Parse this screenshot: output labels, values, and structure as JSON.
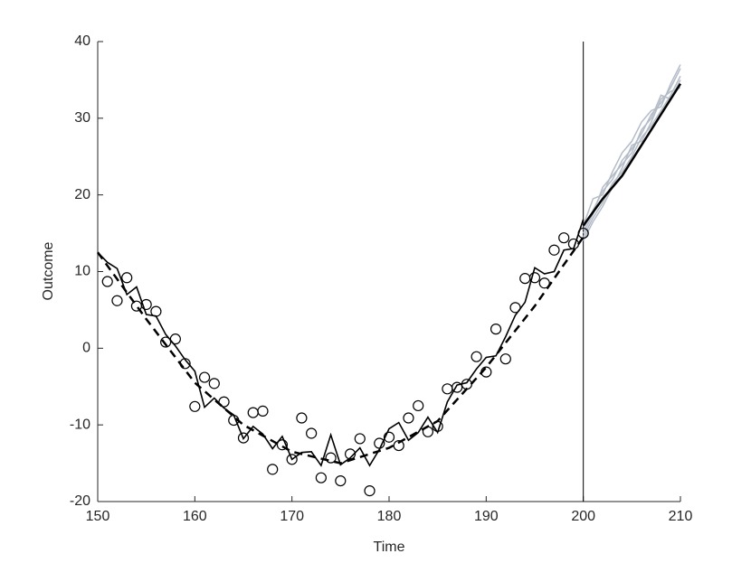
{
  "chart_data": {
    "type": "line",
    "x_label": "Time",
    "y_label": "Outcome",
    "xlim": [
      150,
      210
    ],
    "ylim": [
      -20,
      40
    ],
    "xticks": [
      150,
      160,
      170,
      180,
      190,
      200,
      210
    ],
    "yticks": [
      -20,
      -10,
      0,
      10,
      20,
      30,
      40
    ],
    "vline": 200,
    "series": [
      {
        "style": "paths",
        "color": "#b4bcc8",
        "x": [
          200,
          201,
          202,
          203,
          204,
          205,
          206,
          207,
          208,
          209,
          210
        ],
        "paths": [
          [
            14.5,
            17,
            19,
            21.5,
            23,
            25,
            27.5,
            29,
            31,
            33,
            35.5
          ],
          [
            15.5,
            18,
            20.5,
            22,
            24.5,
            26,
            28,
            30.5,
            32,
            34,
            36.5
          ],
          [
            14,
            16.5,
            18.5,
            21,
            23.5,
            26.5,
            27,
            29.5,
            32.5,
            33.5,
            34
          ],
          [
            16,
            19.5,
            20,
            23,
            25.5,
            27,
            29.5,
            31,
            31.5,
            34.5,
            37
          ],
          [
            15,
            17.5,
            21,
            22.5,
            24,
            25.5,
            28.5,
            30,
            33,
            32.5,
            35
          ]
        ]
      },
      {
        "style": "dashed",
        "color": "#000000",
        "x": [
          150,
          155,
          160,
          165,
          170,
          175,
          180,
          185,
          190,
          195,
          200
        ],
        "values": [
          12.5,
          3.8,
          -4.5,
          -10,
          -13.5,
          -15,
          -13,
          -9.5,
          -2.5,
          5.5,
          14.5
        ]
      },
      {
        "style": "solid",
        "color": "#000000",
        "x": [
          150,
          151,
          152,
          153,
          154,
          155,
          156,
          157,
          158,
          159,
          160,
          161,
          162,
          163,
          164,
          165,
          166,
          167,
          168,
          169,
          170,
          171,
          172,
          173,
          174,
          175,
          176,
          177,
          178,
          179,
          180,
          181,
          182,
          183,
          184,
          185,
          186,
          187,
          188,
          189,
          190,
          191,
          192,
          193,
          194,
          195,
          196,
          197,
          198,
          199,
          200
        ],
        "values": [
          12.5,
          11.2,
          10.4,
          7,
          8,
          4.4,
          4.2,
          1.8,
          0.3,
          -1.5,
          -3,
          -7.7,
          -6.5,
          -7.8,
          -8.7,
          -11.8,
          -10.2,
          -11.2,
          -13.1,
          -11.5,
          -14.5,
          -13.6,
          -13.5,
          -15.3,
          -11.3,
          -15.2,
          -14.3,
          -13,
          -15.3,
          -13.2,
          -10.5,
          -9.7,
          -12,
          -11,
          -9,
          -11,
          -7,
          -4.8,
          -4.5,
          -2.7,
          -1.2,
          -1,
          1.5,
          4.3,
          6,
          10.5,
          9.7,
          10,
          12.8,
          13,
          16.8
        ]
      },
      {
        "style": "thick",
        "color": "#000000",
        "x": [
          200,
          202,
          204,
          206,
          208,
          210
        ],
        "values": [
          16,
          19.5,
          22.5,
          26.5,
          30.5,
          34.5
        ]
      },
      {
        "style": "markers",
        "color": "#000000",
        "x": [
          151,
          152,
          153,
          154,
          155,
          156,
          157,
          158,
          159,
          160,
          161,
          162,
          163,
          164,
          165,
          166,
          167,
          168,
          169,
          170,
          171,
          172,
          173,
          174,
          175,
          176,
          177,
          178,
          179,
          180,
          181,
          182,
          183,
          184,
          185,
          186,
          187,
          188,
          189,
          190,
          191,
          192,
          193,
          194,
          195,
          196,
          197,
          198,
          199,
          200
        ],
        "values": [
          8.7,
          6.2,
          9.2,
          5.5,
          5.7,
          4.8,
          0.8,
          1.2,
          -2,
          -7.6,
          -3.8,
          -4.6,
          -7,
          -9.4,
          -11.7,
          -8.4,
          -8.2,
          -15.8,
          -12.6,
          -14.5,
          -9.1,
          -11.1,
          -16.9,
          -14.3,
          -17.3,
          -13.8,
          -11.8,
          -18.6,
          -12.4,
          -11.6,
          -12.7,
          -9.1,
          -7.5,
          -10.9,
          -10.2,
          -5.3,
          -5.1,
          -4.7,
          -1.1,
          -3.1,
          2.5,
          -1.4,
          5.3,
          9.1,
          9.2,
          8.5,
          12.8,
          14.4,
          13.6,
          15
        ]
      }
    ]
  }
}
